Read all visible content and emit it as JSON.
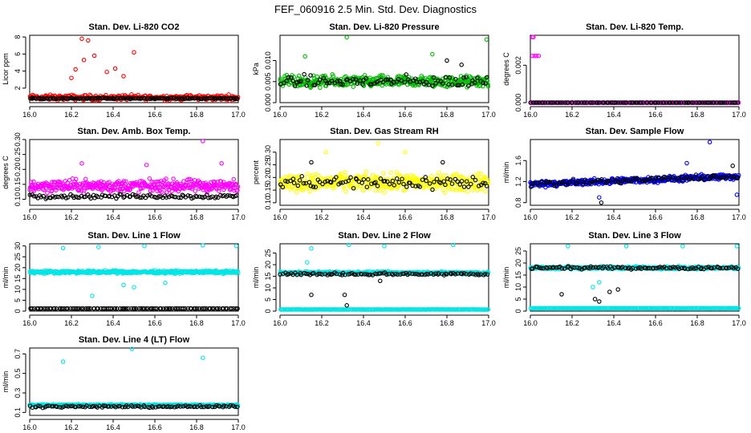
{
  "figure": {
    "title": "FEF_060916  2.5 Min. Std. Dev. Diagnostics"
  },
  "chart_data": [
    {
      "type": "scatter",
      "title": "Stan. Dev. Li-820 CO2",
      "ylabel": "Licor ppm",
      "xlim": [
        16.0,
        17.0
      ],
      "ylim": [
        0.3,
        8.2
      ],
      "xticks": [
        16.0,
        16.2,
        16.4,
        16.6,
        16.8,
        17.0
      ],
      "xtick_labels": [
        "16.0",
        "16.2",
        "16.4",
        "16.6",
        "16.8",
        "17.0"
      ],
      "yticks": [
        2,
        4,
        6,
        8
      ],
      "ytick_labels": [
        "2",
        "4",
        "6",
        "8"
      ],
      "series": [
        {
          "name": "main",
          "color": "#ff0000",
          "base": 0.9,
          "spread": 0.45,
          "outliers": [
            [
              16.25,
              7.8
            ],
            [
              16.28,
              7.6
            ],
            [
              16.31,
              5.8
            ],
            [
              16.26,
              5.3
            ],
            [
              16.5,
              6.2
            ],
            [
              16.22,
              4.2
            ],
            [
              16.37,
              3.9
            ],
            [
              16.41,
              4.3
            ],
            [
              16.2,
              3.2
            ],
            [
              16.45,
              3.4
            ]
          ],
          "count": 300
        },
        {
          "name": "secondary",
          "color": "#000000",
          "base": 0.8,
          "spread": 0.1,
          "outliers": [],
          "count": 140
        }
      ]
    },
    {
      "type": "scatter",
      "title": "Stan. Dev. Li-820 Pressure",
      "ylabel": "kPa",
      "xlim": [
        16.0,
        17.0
      ],
      "ylim": [
        0.0,
        0.016
      ],
      "xticks": [
        16.0,
        16.2,
        16.4,
        16.6,
        16.8,
        17.0
      ],
      "xtick_labels": [
        "16.0",
        "16.2",
        "16.4",
        "16.6",
        "16.8",
        "17.0"
      ],
      "yticks": [
        0.0,
        0.005,
        0.01
      ],
      "ytick_labels": [
        "0.000",
        "0.005",
        "0.010"
      ],
      "series": [
        {
          "name": "main",
          "color": "#00bb00",
          "base": 0.005,
          "spread": 0.002,
          "outliers": [
            [
              16.32,
              0.0155
            ],
            [
              16.99,
              0.015
            ],
            [
              16.12,
              0.011
            ],
            [
              16.73,
              0.0115
            ]
          ],
          "count": 420
        },
        {
          "name": "secondary",
          "color": "#000000",
          "base": 0.005,
          "spread": 0.002,
          "outliers": [
            [
              16.8,
              0.01
            ],
            [
              16.87,
              0.009
            ]
          ],
          "count": 90
        }
      ]
    },
    {
      "type": "scatter",
      "title": "Stan. Dev. Li-820 Temp.",
      "ylabel": "degrees C",
      "xlim": [
        16.0,
        17.0
      ],
      "ylim": [
        0.0,
        0.0036
      ],
      "xticks": [
        16.0,
        16.2,
        16.4,
        16.6,
        16.8,
        17.0
      ],
      "xtick_labels": [
        "16.0",
        "16.2",
        "16.4",
        "16.6",
        "16.8",
        "17.0"
      ],
      "yticks": [
        0.0,
        0.002
      ],
      "ytick_labels": [
        "0.000",
        "0.002"
      ],
      "series": [
        {
          "name": "main",
          "color": "#ff00ff",
          "base": 0.0,
          "spread": 0.0,
          "outliers": [
            [
              16.01,
              0.0035
            ],
            [
              16.015,
              0.0035
            ],
            [
              16.01,
              0.0025
            ],
            [
              16.02,
              0.0025
            ],
            [
              16.03,
              0.0025
            ],
            [
              16.04,
              0.0025
            ]
          ],
          "count": 180
        },
        {
          "name": "secondary",
          "color": "#000000",
          "base": 0.0,
          "spread": 0.0,
          "outliers": [],
          "count": 100
        }
      ]
    },
    {
      "type": "scatter",
      "title": "Stan. Dev. Amb. Box Temp.",
      "ylabel": "degrees C",
      "xlim": [
        16.0,
        17.0
      ],
      "ylim": [
        0.08,
        0.3
      ],
      "xticks": [
        16.0,
        16.2,
        16.4,
        16.6,
        16.8,
        17.0
      ],
      "xtick_labels": [
        "16.0",
        "16.2",
        "16.4",
        "16.6",
        "16.8",
        "17.0"
      ],
      "yticks": [
        0.1,
        0.15,
        0.2,
        0.25,
        0.3
      ],
      "ytick_labels": [
        "0.10",
        "0.15",
        "0.20",
        "0.25",
        "0.30"
      ],
      "series": [
        {
          "name": "main",
          "color": "#ff00ff",
          "base": 0.145,
          "spread": 0.03,
          "outliers": [
            [
              16.83,
              0.295
            ],
            [
              16.25,
              0.22
            ],
            [
              16.56,
              0.215
            ],
            [
              16.92,
              0.22
            ]
          ],
          "count": 400
        },
        {
          "name": "secondary",
          "color": "#000000",
          "base": 0.11,
          "spread": 0.01,
          "outliers": [],
          "count": 110
        }
      ]
    },
    {
      "type": "scatter",
      "title": "Stan. Dev. Gas Stream RH",
      "ylabel": "percent",
      "xlim": [
        16.0,
        17.0
      ],
      "ylim": [
        0.09,
        0.35
      ],
      "xticks": [
        16.0,
        16.2,
        16.4,
        16.6,
        16.8,
        17.0
      ],
      "xtick_labels": [
        "16.0",
        "16.2",
        "16.4",
        "16.6",
        "16.8",
        "17.0"
      ],
      "yticks": [
        0.1,
        0.15,
        0.2,
        0.25,
        0.3
      ],
      "ytick_labels": [
        "0.10",
        "0.15",
        "0.20",
        "0.25",
        "0.30"
      ],
      "series": [
        {
          "name": "main",
          "color": "#ffff00",
          "base": 0.18,
          "spread": 0.05,
          "outliers": [
            [
              16.47,
              0.335
            ],
            [
              16.22,
              0.3
            ],
            [
              16.6,
              0.3
            ]
          ],
          "count": 420
        },
        {
          "name": "secondary",
          "color": "#000000",
          "base": 0.18,
          "spread": 0.04,
          "outliers": [
            [
              16.15,
              0.26
            ],
            [
              16.78,
              0.26
            ]
          ],
          "count": 90
        }
      ]
    },
    {
      "type": "scatter",
      "title": "Stan. Dev. Sample Flow",
      "ylabel": "ml/min",
      "xlim": [
        16.0,
        17.0
      ],
      "ylim": [
        0.75,
        2.0
      ],
      "xticks": [
        16.0,
        16.2,
        16.4,
        16.6,
        16.8,
        17.0
      ],
      "xtick_labels": [
        "16.0",
        "16.2",
        "16.4",
        "16.6",
        "16.8",
        "17.0"
      ],
      "yticks": [
        0.8,
        1.2,
        1.6
      ],
      "ytick_labels": [
        "0.8",
        "1.2",
        "1.6"
      ],
      "series": [
        {
          "name": "main",
          "color": "#0000ff",
          "base": 1.15,
          "spread": 0.08,
          "trend": 0.15,
          "outliers": [
            [
              16.86,
              1.95
            ],
            [
              16.33,
              0.9
            ],
            [
              16.99,
              0.95
            ],
            [
              16.75,
              1.55
            ]
          ],
          "count": 420
        },
        {
          "name": "secondary",
          "color": "#000000",
          "base": 1.15,
          "spread": 0.08,
          "trend": 0.15,
          "outliers": [
            [
              16.34,
              0.8
            ],
            [
              16.97,
              1.5
            ]
          ],
          "count": 100
        }
      ]
    },
    {
      "type": "scatter",
      "title": "Stan. Dev. Line 1 Flow",
      "ylabel": "ml/min",
      "xlim": [
        16.0,
        17.0
      ],
      "ylim": [
        0,
        31
      ],
      "xticks": [
        16.0,
        16.2,
        16.4,
        16.6,
        16.8,
        17.0
      ],
      "xtick_labels": [
        "16.0",
        "16.2",
        "16.4",
        "16.6",
        "16.8",
        "17.0"
      ],
      "yticks": [
        0,
        5,
        10,
        15,
        20,
        25,
        30
      ],
      "ytick_labels": [
        "0",
        "5",
        "10",
        "15",
        "20",
        "25",
        "30"
      ],
      "series": [
        {
          "name": "main",
          "color": "#00e5e5",
          "base": 18,
          "spread": 0.9,
          "outliers": [
            [
              16.16,
              29
            ],
            [
              16.33,
              29.5
            ],
            [
              16.55,
              30
            ],
            [
              16.83,
              30.3
            ],
            [
              16.99,
              30
            ],
            [
              16.3,
              7
            ],
            [
              16.5,
              11
            ],
            [
              16.45,
              12
            ],
            [
              16.65,
              13
            ]
          ],
          "count": 420
        },
        {
          "name": "secondary",
          "color": "#000000",
          "base": 1.2,
          "spread": 0.05,
          "outliers": [],
          "count": 110
        }
      ]
    },
    {
      "type": "scatter",
      "title": "Stan. Dev. Line 2 Flow",
      "ylabel": "ml/min",
      "xlim": [
        16.0,
        17.0
      ],
      "ylim": [
        0,
        29
      ],
      "xticks": [
        16.0,
        16.2,
        16.4,
        16.6,
        16.8,
        17.0
      ],
      "xtick_labels": [
        "16.0",
        "16.2",
        "16.4",
        "16.6",
        "16.8",
        "17.0"
      ],
      "yticks": [
        0,
        5,
        10,
        15,
        20,
        25
      ],
      "ytick_labels": [
        "0",
        "5",
        "10",
        "15",
        "20",
        "25"
      ],
      "series": [
        {
          "name": "main",
          "color": "#00e5e5",
          "base": 16.5,
          "spread": 0.8,
          "outliers": [
            [
              16.15,
              27
            ],
            [
              16.33,
              28.5
            ],
            [
              16.5,
              28
            ],
            [
              16.83,
              28.5
            ],
            [
              16.13,
              21
            ]
          ],
          "count": 380
        },
        {
          "name": "main-flat",
          "color": "#00e5e5",
          "base": 0.7,
          "spread": 0.05,
          "outliers": [],
          "count": 240
        },
        {
          "name": "secondary",
          "color": "#000000",
          "base": 16,
          "spread": 0.8,
          "outliers": [
            [
              16.32,
              2.5
            ],
            [
              16.31,
              7
            ],
            [
              16.15,
              7
            ],
            [
              16.48,
              13
            ]
          ],
          "count": 100
        }
      ]
    },
    {
      "type": "scatter",
      "title": "Stan. Dev. Line 3 Flow",
      "ylabel": "ml/min",
      "xlim": [
        16.0,
        17.0
      ],
      "ylim": [
        0,
        28
      ],
      "xticks": [
        16.0,
        16.2,
        16.4,
        16.6,
        16.8,
        17.0
      ],
      "xtick_labels": [
        "16.0",
        "16.2",
        "16.4",
        "16.6",
        "16.8",
        "17.0"
      ],
      "yticks": [
        0,
        5,
        10,
        15,
        20,
        25
      ],
      "ytick_labels": [
        "0",
        "5",
        "10",
        "15",
        "20",
        "25"
      ],
      "series": [
        {
          "name": "main",
          "color": "#00e5e5",
          "base": 18,
          "spread": 0.8,
          "outliers": [
            [
              16.18,
              27
            ],
            [
              16.46,
              27
            ],
            [
              16.73,
              27
            ],
            [
              16.99,
              27
            ],
            [
              16.3,
              10
            ],
            [
              16.33,
              12
            ]
          ],
          "count": 380
        },
        {
          "name": "main-flat",
          "color": "#00e5e5",
          "base": 1.2,
          "spread": 0.05,
          "outliers": [],
          "count": 240
        },
        {
          "name": "secondary",
          "color": "#000000",
          "base": 18,
          "spread": 0.8,
          "outliers": [
            [
              16.31,
              5
            ],
            [
              16.33,
              4
            ],
            [
              16.15,
              7
            ],
            [
              16.38,
              8
            ],
            [
              16.42,
              9
            ]
          ],
          "count": 100
        }
      ]
    },
    {
      "type": "scatter",
      "title": "Stan. Dev. Line 4 (LT) Flow",
      "ylabel": "ml/min",
      "xlim": [
        16.0,
        17.0
      ],
      "ylim": [
        0.07,
        0.76
      ],
      "xticks": [
        16.0,
        16.2,
        16.4,
        16.6,
        16.8,
        17.0
      ],
      "xtick_labels": [
        "16.0",
        "16.2",
        "16.4",
        "16.6",
        "16.8",
        "17.0"
      ],
      "yticks": [
        0.1,
        0.3,
        0.5,
        0.7
      ],
      "ytick_labels": [
        "0.1",
        "0.3",
        "0.5",
        "0.7"
      ],
      "series": [
        {
          "name": "main",
          "color": "#00e5e5",
          "base": 0.175,
          "spread": 0.012,
          "outliers": [
            [
              16.49,
              0.75
            ],
            [
              16.16,
              0.62
            ],
            [
              16.83,
              0.66
            ]
          ],
          "count": 420
        },
        {
          "name": "secondary",
          "color": "#000000",
          "base": 0.16,
          "spread": 0.015,
          "outliers": [],
          "count": 100
        }
      ]
    }
  ]
}
